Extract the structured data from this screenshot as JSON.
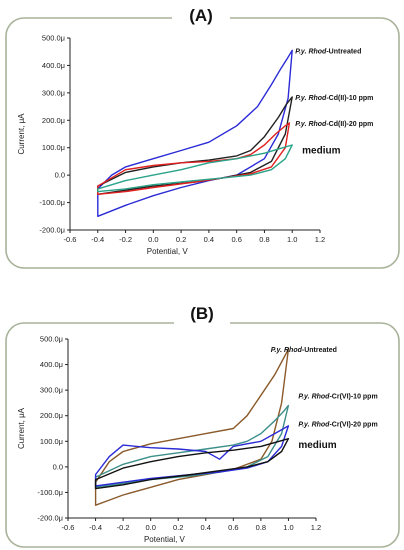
{
  "panels": [
    {
      "letter": "(A)",
      "chart_data": {
        "type": "line",
        "xlabel": "Potential, V",
        "ylabel": "Current, μA",
        "xlim": [
          -0.6,
          1.2
        ],
        "ylim": [
          -200,
          500
        ],
        "x_ticks": [
          "-0.6",
          "-0.4",
          "-0.2",
          "0.0",
          "0.2",
          "0.4",
          "0.6",
          "0.8",
          "1.0",
          "1.2"
        ],
        "y_ticks": [
          "-200.0μ",
          "-100.0μ",
          "0.0",
          "100.0μ",
          "200.0μ",
          "300.0μ",
          "400.0μ",
          "500.0μ"
        ],
        "series": [
          {
            "color": "#2b2bd6",
            "x": [
              -0.4,
              -0.3,
              -0.2,
              0.0,
              0.2,
              0.4,
              0.6,
              0.75,
              0.85,
              0.92,
              0.97,
              1.0,
              0.97,
              0.9,
              0.8,
              0.6,
              0.4,
              0.2,
              0.0,
              -0.2,
              -0.3,
              -0.4
            ],
            "y": [
              -50,
              0,
              30,
              60,
              90,
              120,
              180,
              250,
              330,
              390,
              430,
              455,
              280,
              150,
              60,
              0,
              -20,
              -45,
              -75,
              -110,
              -130,
              -150
            ]
          },
          {
            "color": "#222222",
            "x": [
              -0.4,
              -0.2,
              0.0,
              0.2,
              0.4,
              0.6,
              0.7,
              0.8,
              0.9,
              0.96,
              1.0,
              0.95,
              0.85,
              0.7,
              0.5,
              0.3,
              0.0,
              -0.2,
              -0.4
            ],
            "y": [
              -40,
              10,
              30,
              45,
              55,
              70,
              90,
              140,
              210,
              260,
              285,
              150,
              50,
              10,
              -10,
              -25,
              -40,
              -55,
              -70
            ]
          },
          {
            "color": "#e02020",
            "x": [
              -0.4,
              -0.2,
              0.0,
              0.2,
              0.4,
              0.6,
              0.7,
              0.8,
              0.88,
              0.95,
              0.98,
              0.95,
              0.85,
              0.7,
              0.5,
              0.3,
              0.0,
              -0.2,
              -0.4
            ],
            "y": [
              -40,
              20,
              35,
              45,
              50,
              60,
              75,
              110,
              150,
              180,
              190,
              100,
              30,
              5,
              -10,
              -25,
              -45,
              -60,
              -70
            ]
          },
          {
            "color": "#2aa38a",
            "x": [
              -0.4,
              -0.2,
              0.0,
              0.2,
              0.4,
              0.6,
              0.8,
              0.9,
              1.0,
              0.95,
              0.85,
              0.7,
              0.5,
              0.3,
              0.0,
              -0.2,
              -0.4
            ],
            "y": [
              -50,
              -20,
              0,
              20,
              45,
              60,
              80,
              95,
              110,
              60,
              20,
              0,
              -10,
              -20,
              -35,
              -50,
              -60
            ]
          }
        ],
        "labels": [
          {
            "text": "P.y. Rhod-Untreated",
            "x": 1.0,
            "y": 455,
            "style": "small"
          },
          {
            "text": "P.y. Rhod-Cd(II)-10 ppm",
            "x": 1.0,
            "y": 285,
            "style": "small"
          },
          {
            "text": "P.y. Rhod-Cd(II)-20 ppm",
            "x": 1.0,
            "y": 190,
            "style": "small"
          },
          {
            "text": "medium",
            "x": 1.05,
            "y": 90,
            "style": "medium"
          }
        ]
      }
    },
    {
      "letter": "(B)",
      "chart_data": {
        "type": "line",
        "xlabel": "Potential, V",
        "ylabel": "Current, μA",
        "xlim": [
          -0.6,
          1.2
        ],
        "ylim": [
          -200,
          500
        ],
        "x_ticks": [
          "-0.6",
          "-0.4",
          "-0.2",
          "0.0",
          "0.2",
          "0.4",
          "0.6",
          "0.8",
          "1.0",
          "1.2"
        ],
        "y_ticks": [
          "-200.0μ",
          "-100.0μ",
          "0.0",
          "100.0μ",
          "200.0μ",
          "300.0μ",
          "400.0μ",
          "500.0μ"
        ],
        "series": [
          {
            "color": "#8a5a2b",
            "x": [
              -0.4,
              -0.3,
              -0.2,
              0.0,
              0.2,
              0.4,
              0.6,
              0.7,
              0.8,
              0.9,
              0.95,
              1.0,
              0.95,
              0.88,
              0.8,
              0.6,
              0.4,
              0.2,
              0.0,
              -0.2,
              -0.3,
              -0.4
            ],
            "y": [
              -60,
              20,
              60,
              90,
              110,
              130,
              150,
              200,
              280,
              360,
              410,
              460,
              250,
              100,
              30,
              -10,
              -30,
              -50,
              -80,
              -110,
              -130,
              -150
            ]
          },
          {
            "color": "#3d8f8a",
            "x": [
              -0.4,
              -0.2,
              0.0,
              0.2,
              0.4,
              0.6,
              0.7,
              0.8,
              0.9,
              0.97,
              1.0,
              0.95,
              0.85,
              0.7,
              0.5,
              0.3,
              0.0,
              -0.2,
              -0.4
            ],
            "y": [
              -40,
              10,
              40,
              55,
              70,
              85,
              100,
              130,
              180,
              220,
              240,
              130,
              40,
              0,
              -20,
              -35,
              -50,
              -65,
              -80
            ]
          },
          {
            "color": "#2b2bd6",
            "x": [
              -0.4,
              -0.3,
              -0.2,
              -0.1,
              0.0,
              0.2,
              0.4,
              0.5,
              0.55,
              0.6,
              0.7,
              0.8,
              0.9,
              1.0,
              0.95,
              0.85,
              0.7,
              0.5,
              0.3,
              0.0,
              -0.2,
              -0.4
            ],
            "y": [
              -30,
              40,
              85,
              80,
              75,
              70,
              60,
              30,
              55,
              80,
              90,
              100,
              130,
              160,
              80,
              20,
              -5,
              -20,
              -30,
              -45,
              -60,
              -75
            ]
          },
          {
            "color": "#111111",
            "x": [
              -0.4,
              -0.2,
              0.0,
              0.2,
              0.4,
              0.6,
              0.8,
              0.9,
              1.0,
              0.95,
              0.85,
              0.7,
              0.5,
              0.3,
              0.0,
              -0.2,
              -0.4
            ],
            "y": [
              -50,
              -5,
              20,
              40,
              55,
              65,
              80,
              95,
              110,
              60,
              20,
              0,
              -15,
              -30,
              -50,
              -70,
              -85
            ]
          }
        ],
        "labels": [
          {
            "text": "P.y. Rhod-Untreated",
            "x": 0.85,
            "y": 460,
            "style": "small"
          },
          {
            "text": "P.y. Rhod-Cr(VI)-10 ppm",
            "x": 1.05,
            "y": 280,
            "style": "small"
          },
          {
            "text": "P.y. Rhod-Cr(VI)-20 ppm",
            "x": 1.05,
            "y": 170,
            "style": "small"
          },
          {
            "text": "medium",
            "x": 1.05,
            "y": 85,
            "style": "medium"
          }
        ]
      }
    }
  ]
}
